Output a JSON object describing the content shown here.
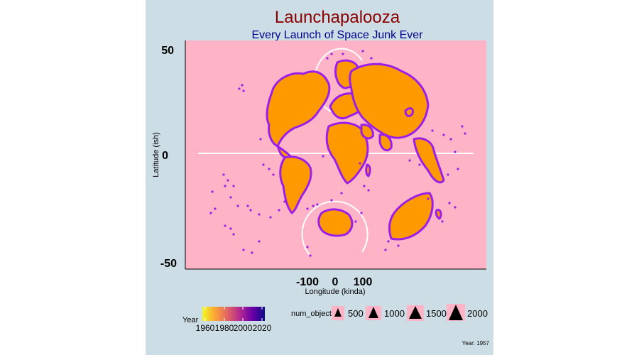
{
  "chart_data": {
    "type": "scatter",
    "title": "Launchapalooza",
    "subtitle": "Every Launch of Space Junk Ever",
    "xlabel": "Longitude (kinda)",
    "ylabel": "Latitude (ish)",
    "x_ticks": [
      "-100",
      "0",
      "100"
    ],
    "y_ticks": [
      "50",
      "0",
      "-50"
    ],
    "legend_year": {
      "title": "Year",
      "ticks": [
        "1960",
        "1980",
        "2000",
        "2020"
      ],
      "colors": [
        "#f0f921",
        "#fca636",
        "#e16462",
        "#b12a90",
        "#6a00a8",
        "#0d0887"
      ]
    },
    "legend_size": {
      "title": "num_objects",
      "entries": [
        "500",
        "1000",
        "1500",
        "2000"
      ]
    },
    "caption": "Year: 1957",
    "colors": {
      "panel": "#ffb3c6",
      "land": "#ff9900",
      "outline": "#9b1fe8",
      "background": "#cddde6",
      "title": "#8b0000",
      "subtitle": "#00008b"
    }
  }
}
